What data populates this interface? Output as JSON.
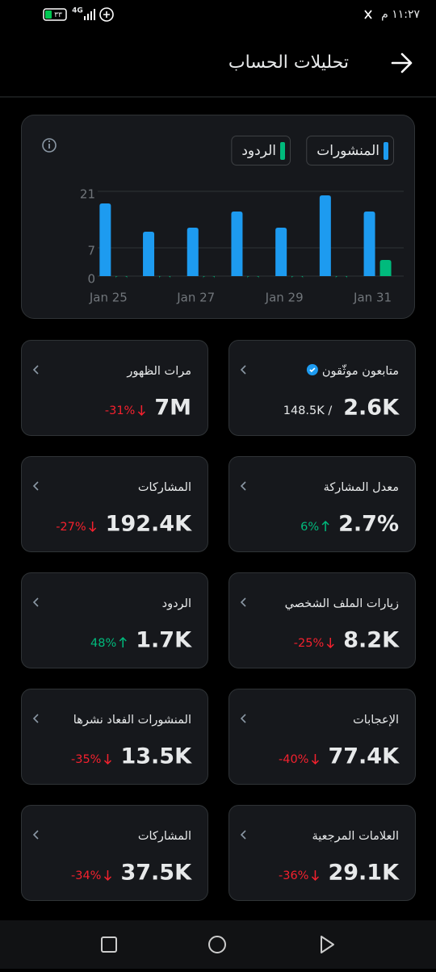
{
  "status_bar": {
    "time": "١١:٢٧ م",
    "network": "4G",
    "battery": "٣٣"
  },
  "header": {
    "title": "تحليلات الحساب"
  },
  "chart_data": {
    "type": "bar",
    "categories": [
      "Jan 25",
      null,
      "Jan 27",
      null,
      "Jan 29",
      null,
      "Jan 31"
    ],
    "series": [
      {
        "name": "المنشورات",
        "color": "#1d9bf0",
        "values": [
          18,
          11,
          12,
          16,
          12,
          20,
          16
        ]
      },
      {
        "name": "الردود",
        "color": "#00ba7c",
        "values": [
          0,
          0,
          0,
          0,
          0,
          0,
          4
        ]
      }
    ],
    "ylim": [
      0,
      21
    ],
    "yticks": [
      0,
      7,
      21
    ],
    "grid": true
  },
  "cards": [
    {
      "title": "متابعون موثّقون",
      "value": "2.6K",
      "secondary": "148.5K /",
      "verified": true
    },
    {
      "title": "مرات الظهور",
      "value": "7M",
      "change": "-31%"
    },
    {
      "title": "معدل المشاركة",
      "value": "2.7%",
      "change": "6%"
    },
    {
      "title": "المشاركات",
      "value": "192.4K",
      "change": "-27%"
    },
    {
      "title": "زيارات الملف الشخصي",
      "value": "8.2K",
      "change": "-25%"
    },
    {
      "title": "الردود",
      "value": "1.7K",
      "change": "48%"
    },
    {
      "title": "الإعجابات",
      "value": "77.4K",
      "change": "-40%"
    },
    {
      "title": "المنشورات الفعاد نشرها",
      "value": "13.5K",
      "change": "-35%"
    },
    {
      "title": "العلامات المرجعية",
      "value": "29.1K",
      "change": "-36%"
    },
    {
      "title": "المشاركات",
      "value": "37.5K",
      "change": "-34%"
    }
  ]
}
